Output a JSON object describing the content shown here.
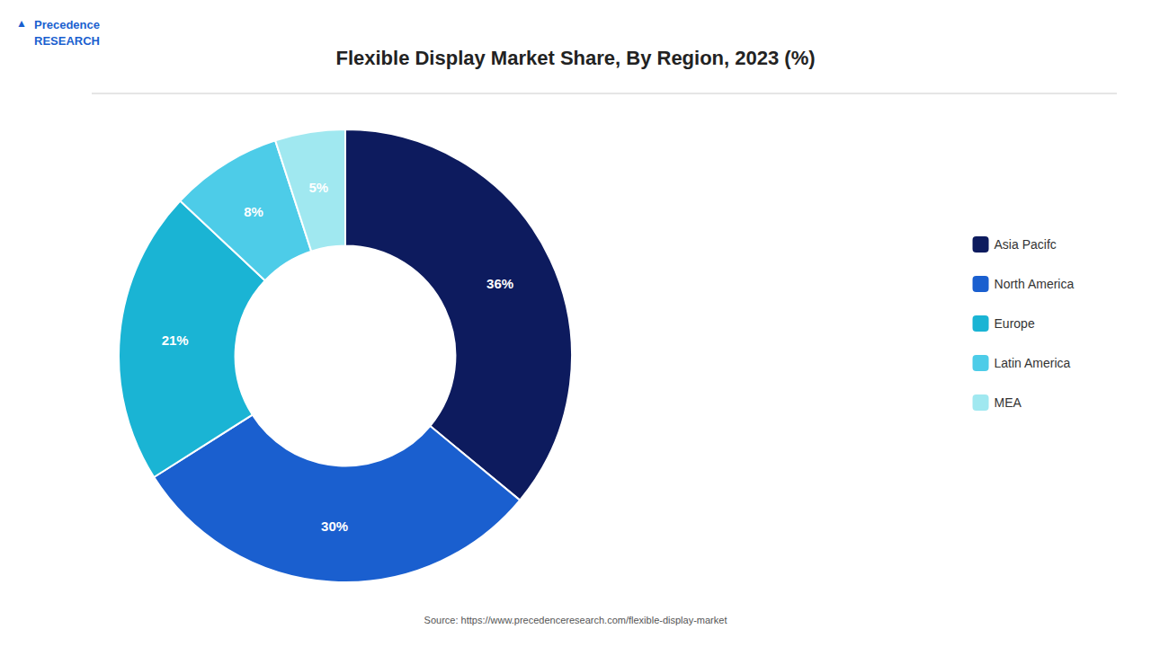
{
  "chart_data": {
    "type": "pie",
    "title": "Flexible Display Market Share, By Region, 2023 (%)",
    "categories": [
      "Asia Pacifc",
      "North America",
      "Europe",
      "Latin America",
      "MEA"
    ],
    "values": [
      36,
      30,
      21,
      8,
      5
    ],
    "value_labels": [
      "36%",
      "30%",
      "21%",
      "8%",
      "5%"
    ],
    "colors": [
      "#0d1b5e",
      "#1a5fcf",
      "#1ab4d4",
      "#4dcce8",
      "#a0e8f0"
    ],
    "data_labels": true,
    "legend": "right",
    "annotations": [
      "Source: https://www.precedenceresearch.com/flexible-display-market",
      "Precedence\nRESEARCH",
      "▲"
    ]
  }
}
